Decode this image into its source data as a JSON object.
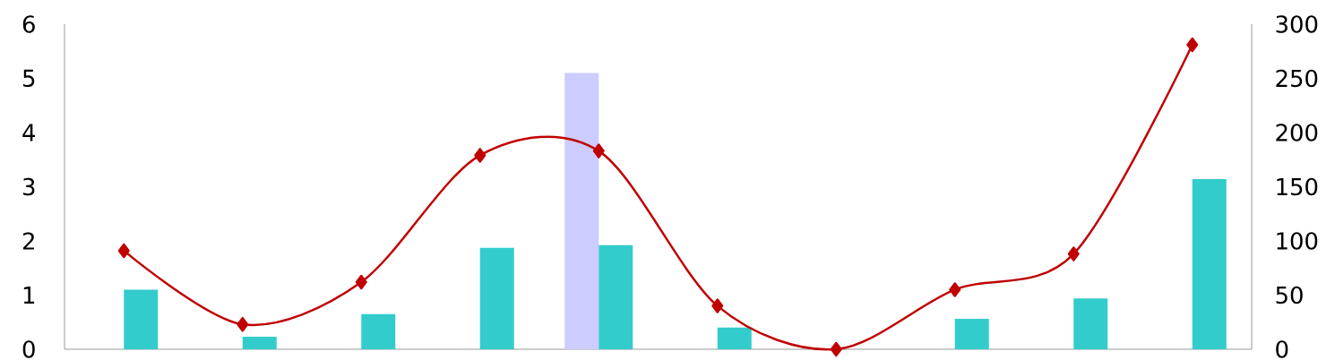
{
  "chart_data": {
    "type": "bar",
    "categories": [
      null,
      null,
      null,
      null,
      null,
      null,
      null,
      null,
      null,
      null
    ],
    "series": [
      {
        "color": "#ccccff",
        "values": [
          null,
          null,
          null,
          null,
          5.1,
          null,
          null,
          null,
          null,
          null
        ]
      },
      {
        "color": "#33cccc",
        "values": [
          1.1,
          0.23,
          0.65,
          1.87,
          1.92,
          0.4,
          null,
          0.56,
          0.94,
          3.14
        ]
      },
      {
        "type": "line",
        "axis": "y2",
        "color": "#c00000",
        "values": [
          91,
          23,
          62,
          179,
          183,
          40,
          0,
          55,
          88,
          281
        ]
      }
    ],
    "ylim": [
      0,
      6
    ],
    "yticks": [
      0,
      1,
      2,
      3,
      4,
      5,
      6
    ],
    "y2lim": [
      0,
      300
    ],
    "y2ticks": [
      0,
      50,
      100,
      150,
      200,
      250,
      300
    ],
    "marker": "diamond",
    "line_style": "solid",
    "grid": false
  }
}
